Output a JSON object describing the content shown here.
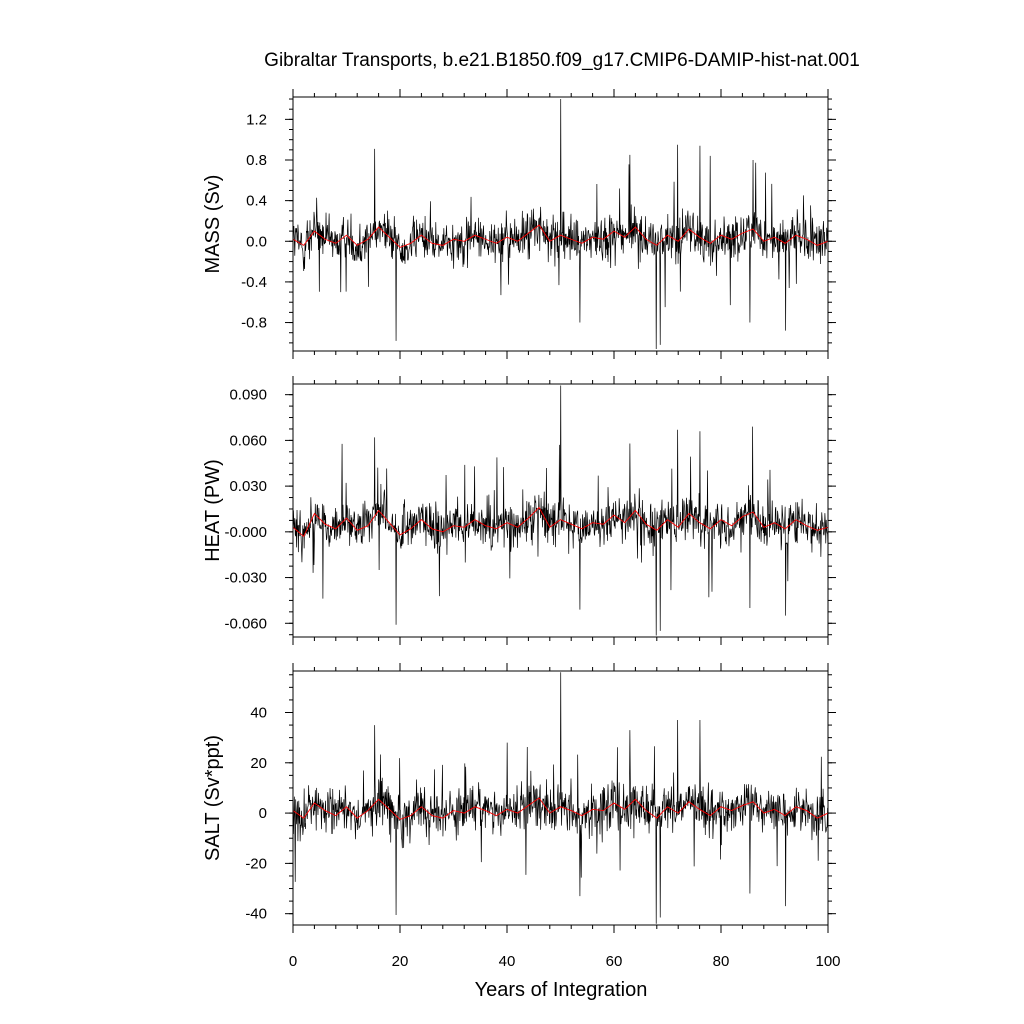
{
  "title": "Gibraltar Transports, b.e21.B1850.f09_g17.CMIP6-DAMIP-hist-nat.001",
  "xlabel": "Years of Integration",
  "x_ticks": [
    "0",
    "20",
    "40",
    "60",
    "80",
    "100"
  ],
  "colors": {
    "raw": "#000000",
    "smoothed": "#ff0000",
    "axes": "#000000"
  },
  "chart_data": [
    {
      "type": "line",
      "name": "mass",
      "ylabel": "MASS (Sv)",
      "xlim": [
        0,
        100
      ],
      "ylim": [
        -1.08,
        1.42
      ],
      "y_ticks": [
        -0.8,
        -0.4,
        0.0,
        0.4,
        0.8,
        1.2
      ],
      "y_tick_labels": [
        "-0.8",
        "-0.4",
        "0.0",
        "0.4",
        "0.8",
        "1.2"
      ],
      "y_minor_step": 0.1,
      "smoothed": {
        "x": [
          0,
          2,
          4,
          6,
          8,
          10,
          12,
          14,
          16,
          18,
          20,
          22,
          24,
          26,
          28,
          30,
          32,
          34,
          36,
          38,
          40,
          42,
          44,
          46,
          48,
          50,
          52,
          54,
          56,
          58,
          60,
          62,
          64,
          66,
          68,
          70,
          72,
          74,
          76,
          78,
          80,
          82,
          84,
          86,
          88,
          90,
          92,
          94,
          96,
          98,
          100
        ],
        "y": [
          0.02,
          -0.04,
          0.1,
          0.02,
          -0.02,
          0.06,
          -0.04,
          0.02,
          0.14,
          0.04,
          -0.06,
          -0.02,
          0.06,
          -0.02,
          -0.04,
          0.02,
          0.0,
          0.06,
          0.02,
          -0.02,
          0.04,
          0.0,
          0.08,
          0.16,
          0.0,
          0.06,
          0.02,
          -0.02,
          0.04,
          0.02,
          0.1,
          0.04,
          0.14,
          0.02,
          -0.04,
          0.06,
          0.0,
          0.12,
          0.04,
          -0.02,
          0.06,
          0.02,
          0.08,
          0.12,
          0.0,
          0.04,
          -0.02,
          0.06,
          0.02,
          -0.04,
          0.0
        ]
      },
      "spikes": [
        {
          "x": 15.3,
          "y": 0.91
        },
        {
          "x": 19.3,
          "y": -0.98
        },
        {
          "x": 50.0,
          "y": 1.4
        },
        {
          "x": 53.6,
          "y": -0.8
        },
        {
          "x": 63.0,
          "y": 0.85
        },
        {
          "x": 67.9,
          "y": -1.06
        },
        {
          "x": 68.6,
          "y": -1.02
        },
        {
          "x": 71.9,
          "y": 0.95
        },
        {
          "x": 76.1,
          "y": 0.94
        },
        {
          "x": 78.0,
          "y": 0.84
        },
        {
          "x": 85.4,
          "y": -0.8
        },
        {
          "x": 92.1,
          "y": -0.88
        },
        {
          "x": 86.0,
          "y": 0.8
        }
      ]
    },
    {
      "type": "line",
      "name": "heat",
      "ylabel": "HEAT (PW)",
      "xlim": [
        0,
        100
      ],
      "ylim": [
        -0.069,
        0.097
      ],
      "y_ticks": [
        -0.06,
        -0.03,
        0.0,
        0.03,
        0.06,
        0.09
      ],
      "y_tick_labels": [
        "-0.060",
        "-0.030",
        "-0.000",
        "0.030",
        "0.060",
        "0.090"
      ],
      "y_minor_step": 0.0075,
      "smoothed": {
        "x": [
          0,
          2,
          4,
          6,
          8,
          10,
          12,
          14,
          16,
          18,
          20,
          22,
          24,
          26,
          28,
          30,
          32,
          34,
          36,
          38,
          40,
          42,
          44,
          46,
          48,
          50,
          52,
          54,
          56,
          58,
          60,
          62,
          64,
          66,
          68,
          70,
          72,
          74,
          76,
          78,
          80,
          82,
          84,
          86,
          88,
          90,
          92,
          94,
          96,
          98,
          100
        ],
        "y": [
          0.003,
          -0.003,
          0.012,
          0.005,
          0.002,
          0.009,
          0.001,
          0.004,
          0.014,
          0.006,
          -0.002,
          0.002,
          0.008,
          0.002,
          0.0,
          0.004,
          0.003,
          0.008,
          0.004,
          0.002,
          0.006,
          0.003,
          0.009,
          0.016,
          0.003,
          0.008,
          0.005,
          0.002,
          0.006,
          0.005,
          0.011,
          0.006,
          0.014,
          0.005,
          0.001,
          0.008,
          0.003,
          0.012,
          0.006,
          0.002,
          0.008,
          0.004,
          0.01,
          0.013,
          0.003,
          0.006,
          0.002,
          0.008,
          0.004,
          0.001,
          0.003
        ]
      },
      "spikes": [
        {
          "x": 15.3,
          "y": 0.062
        },
        {
          "x": 19.3,
          "y": -0.061
        },
        {
          "x": 50.0,
          "y": 0.096
        },
        {
          "x": 53.6,
          "y": -0.051
        },
        {
          "x": 63.0,
          "y": 0.058
        },
        {
          "x": 67.9,
          "y": -0.068
        },
        {
          "x": 68.6,
          "y": -0.065
        },
        {
          "x": 71.9,
          "y": 0.067
        },
        {
          "x": 76.1,
          "y": 0.066
        },
        {
          "x": 85.9,
          "y": 0.069
        },
        {
          "x": 85.4,
          "y": -0.05
        },
        {
          "x": 92.1,
          "y": -0.055
        }
      ]
    },
    {
      "type": "line",
      "name": "salt",
      "ylabel": "SALT (Sv*ppt)",
      "xlim": [
        0,
        100
      ],
      "ylim": [
        -44.5,
        56.5
      ],
      "y_ticks": [
        -40,
        -20,
        0,
        20,
        40
      ],
      "y_tick_labels": [
        "-40",
        "-20",
        "0",
        "20",
        "40"
      ],
      "y_minor_step": 5,
      "smoothed": {
        "x": [
          0,
          2,
          4,
          6,
          8,
          10,
          12,
          14,
          16,
          18,
          20,
          22,
          24,
          26,
          28,
          30,
          32,
          34,
          36,
          38,
          40,
          42,
          44,
          46,
          48,
          50,
          52,
          54,
          56,
          58,
          60,
          62,
          64,
          66,
          68,
          70,
          72,
          74,
          76,
          78,
          80,
          82,
          84,
          86,
          88,
          90,
          92,
          94,
          96,
          98,
          100
        ],
        "y": [
          1.0,
          -2.0,
          4.0,
          1.0,
          -1.0,
          2.5,
          -2.0,
          1.0,
          5.5,
          1.5,
          -2.5,
          -1.0,
          2.5,
          -1.0,
          -2.0,
          1.0,
          0.0,
          2.5,
          1.0,
          -1.0,
          1.5,
          0.0,
          3.0,
          6.0,
          0.0,
          2.5,
          1.0,
          -1.0,
          1.5,
          1.0,
          4.0,
          1.5,
          5.5,
          1.0,
          -2.0,
          2.5,
          0.0,
          4.5,
          1.5,
          -1.0,
          2.5,
          1.0,
          3.0,
          4.5,
          0.0,
          1.5,
          -1.0,
          2.5,
          1.0,
          -2.0,
          0.0
        ]
      },
      "spikes": [
        {
          "x": 15.3,
          "y": 35.0
        },
        {
          "x": 19.3,
          "y": -40.5
        },
        {
          "x": 50.0,
          "y": 56.0
        },
        {
          "x": 53.6,
          "y": -33.0
        },
        {
          "x": 63.0,
          "y": 33.0
        },
        {
          "x": 67.9,
          "y": -44.0
        },
        {
          "x": 68.6,
          "y": -41.5
        },
        {
          "x": 71.9,
          "y": 37.0
        },
        {
          "x": 76.1,
          "y": 37.0
        },
        {
          "x": 85.4,
          "y": -32.0
        },
        {
          "x": 92.1,
          "y": -37.0
        }
      ]
    }
  ]
}
